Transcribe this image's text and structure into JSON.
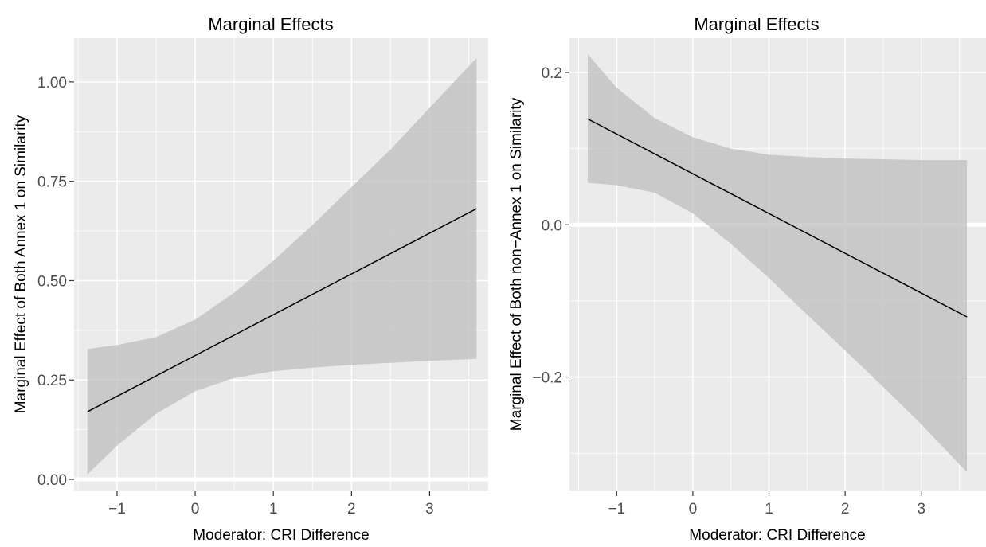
{
  "chart_data": [
    {
      "type": "line",
      "title": "Marginal Effects",
      "xlabel": "Moderator: CRI Difference",
      "ylabel": "Marginal Effect of Both Annex 1 on Similarity",
      "xlim": [
        -1.55,
        3.75
      ],
      "ylim": [
        -0.03,
        1.11
      ],
      "x_ticks": [
        -1,
        0,
        1,
        2,
        3
      ],
      "x_tick_labels": [
        "−1",
        "0",
        "1",
        "2",
        "3"
      ],
      "y_ticks": [
        0.0,
        0.25,
        0.5,
        0.75,
        1.0
      ],
      "y_tick_labels": [
        "0.00",
        "0.25",
        "0.50",
        "0.75",
        "1.00"
      ],
      "grid": true,
      "zero_line": 0,
      "series": [
        {
          "x": [
            -1.38,
            3.6
          ],
          "y": [
            0.17,
            0.681
          ],
          "band_x": [
            -1.38,
            -1.0,
            -0.5,
            0.0,
            0.5,
            1.0,
            1.5,
            2.0,
            2.5,
            3.0,
            3.6
          ],
          "band_lower": [
            0.012,
            0.085,
            0.165,
            0.222,
            0.255,
            0.272,
            0.281,
            0.288,
            0.293,
            0.298,
            0.303
          ],
          "band_upper": [
            0.328,
            0.338,
            0.358,
            0.402,
            0.47,
            0.55,
            0.64,
            0.735,
            0.83,
            0.935,
            1.06
          ]
        }
      ]
    },
    {
      "type": "line",
      "title": "Marginal Effects",
      "xlabel": "Moderator: CRI Difference",
      "ylabel": "Marginal Effect of Both non−Annex 1 on Similarity",
      "xlim": [
        -1.62,
        3.85
      ],
      "ylim": [
        -0.35,
        0.245
      ],
      "x_ticks": [
        -1,
        0,
        1,
        2,
        3
      ],
      "x_tick_labels": [
        "−1",
        "0",
        "1",
        "2",
        "3"
      ],
      "y_ticks": [
        -0.2,
        0.0,
        0.2
      ],
      "y_tick_labels": [
        "−0.2",
        "0.0",
        "0.2"
      ],
      "grid": true,
      "zero_line": 0,
      "series": [
        {
          "x": [
            -1.38,
            3.6
          ],
          "y": [
            0.139,
            -0.121
          ],
          "band_x": [
            -1.38,
            -1.0,
            -0.5,
            0.0,
            0.5,
            1.0,
            1.5,
            2.0,
            2.5,
            3.0,
            3.6
          ],
          "band_lower": [
            0.055,
            0.052,
            0.042,
            0.015,
            -0.025,
            -0.07,
            -0.118,
            -0.165,
            -0.213,
            -0.262,
            -0.325
          ],
          "band_upper": [
            0.224,
            0.18,
            0.14,
            0.115,
            0.1,
            0.092,
            0.089,
            0.087,
            0.086,
            0.085,
            0.085
          ]
        }
      ]
    }
  ]
}
